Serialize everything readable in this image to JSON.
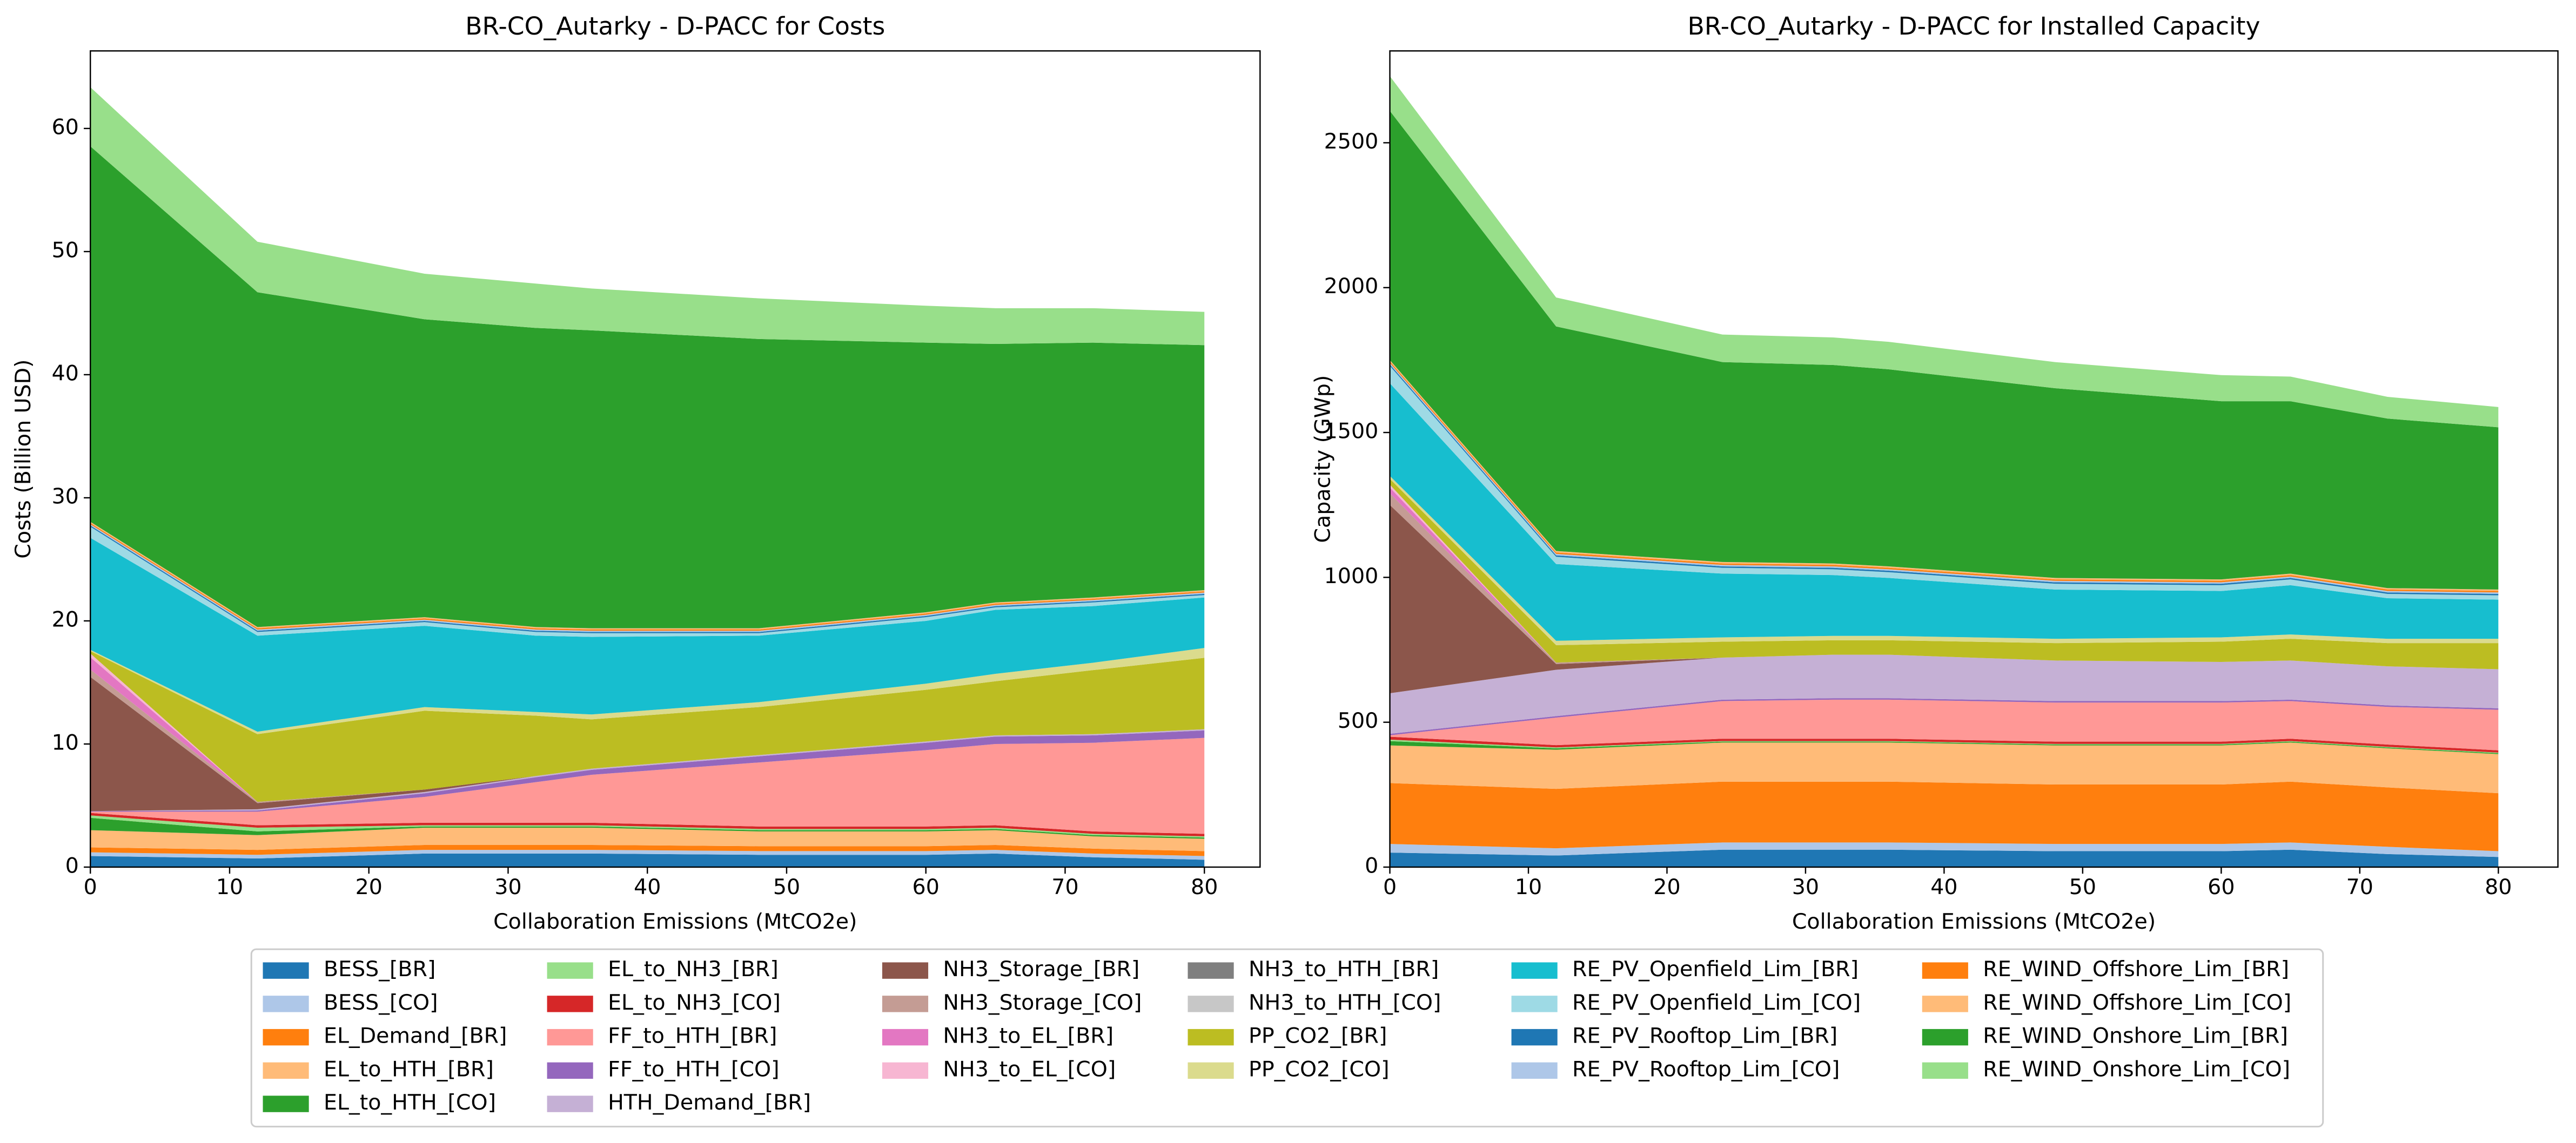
{
  "chart_data": [
    {
      "type": "stackedarea",
      "title": "BR-CO_Autarky - D-PACC for Costs",
      "x_label": "Collaboration Emissions (MtCO2e)",
      "y_label": "Costs (Billion USD)",
      "x": [
        0,
        12,
        24,
        32,
        36,
        48,
        60,
        65,
        72,
        80
      ],
      "xlim": [
        0,
        84
      ],
      "xticks": [
        0,
        10,
        20,
        30,
        40,
        50,
        60,
        70,
        80
      ],
      "ylim": [
        0,
        66.3
      ],
      "yticks": [
        0,
        10,
        20,
        30,
        40,
        50,
        60
      ],
      "series": [
        {
          "name": "BESS_[BR]",
          "color": "#1f77b4",
          "values": [
            0.9,
            0.7,
            1.1,
            1.1,
            1.1,
            1.0,
            1.0,
            1.1,
            0.8,
            0.6
          ]
        },
        {
          "name": "BESS_[CO]",
          "color": "#aec7e8",
          "values": [
            0.3,
            0.3,
            0.3,
            0.3,
            0.3,
            0.3,
            0.3,
            0.3,
            0.3,
            0.3
          ]
        },
        {
          "name": "EL_Demand_[BR]",
          "color": "#ff7f0e",
          "values": [
            0.4,
            0.4,
            0.4,
            0.4,
            0.4,
            0.4,
            0.4,
            0.4,
            0.4,
            0.4
          ]
        },
        {
          "name": "EL_to_HTH_[BR]",
          "color": "#ffbb78",
          "values": [
            1.4,
            1.2,
            1.4,
            1.4,
            1.4,
            1.2,
            1.2,
            1.2,
            1.0,
            1.0
          ]
        },
        {
          "name": "EL_to_HTH_[CO]",
          "color": "#2ca02c",
          "values": [
            1.0,
            0.3,
            0.1,
            0.1,
            0.1,
            0.1,
            0.1,
            0.1,
            0.1,
            0.1
          ]
        },
        {
          "name": "EL_to_NH3_[BR]",
          "color": "#98df8a",
          "values": [
            0.2,
            0.3,
            0.1,
            0.1,
            0.1,
            0.1,
            0.1,
            0.1,
            0.1,
            0.1
          ]
        },
        {
          "name": "EL_to_NH3_[CO]",
          "color": "#d62728",
          "values": [
            0.2,
            0.2,
            0.2,
            0.2,
            0.2,
            0.2,
            0.2,
            0.2,
            0.2,
            0.2
          ]
        },
        {
          "name": "FF_to_HTH_[BR]",
          "color": "#ff9896",
          "values": [
            0.1,
            1.1,
            2.1,
            3.3,
            3.9,
            5.2,
            6.2,
            6.6,
            7.2,
            7.8
          ]
        },
        {
          "name": "FF_to_HTH_[CO]",
          "color": "#9467bd",
          "values": [
            0.05,
            0.1,
            0.3,
            0.4,
            0.4,
            0.5,
            0.6,
            0.6,
            0.6,
            0.6
          ]
        },
        {
          "name": "HTH_Demand_[BR]",
          "color": "#c5b0d5",
          "values": [
            0,
            0.1,
            0.1,
            0.1,
            0.1,
            0.1,
            0.1,
            0.1,
            0.1,
            0.1
          ]
        },
        {
          "name": "NH3_Storage_[BR]",
          "color": "#8c564b",
          "values": [
            10.9,
            0.5,
            0.2,
            0,
            0,
            0,
            0,
            0,
            0,
            0
          ]
        },
        {
          "name": "NH3_Storage_[CO]",
          "color": "#c49c94",
          "values": [
            0.6,
            0.1,
            0,
            0,
            0,
            0,
            0,
            0,
            0,
            0
          ]
        },
        {
          "name": "NH3_to_EL_[BR]",
          "color": "#e377c2",
          "values": [
            1.0,
            0,
            0,
            0,
            0,
            0,
            0,
            0,
            0,
            0
          ]
        },
        {
          "name": "NH3_to_EL_[CO]",
          "color": "#f7b6d2",
          "values": [
            0.3,
            0,
            0,
            0,
            0,
            0,
            0,
            0,
            0,
            0
          ]
        },
        {
          "name": "NH3_to_HTH_[BR]",
          "color": "#7f7f7f",
          "values": [
            0,
            0,
            0,
            0,
            0,
            0,
            0,
            0,
            0,
            0
          ]
        },
        {
          "name": "NH3_to_HTH_[CO]",
          "color": "#c7c7c7",
          "values": [
            0,
            0,
            0,
            0,
            0,
            0,
            0,
            0,
            0,
            0
          ]
        },
        {
          "name": "PP_CO2_[BR]",
          "color": "#bcbd22",
          "values": [
            0.2,
            5.5,
            6.4,
            4.9,
            4.0,
            3.9,
            4.2,
            4.4,
            5.2,
            5.8
          ]
        },
        {
          "name": "PP_CO2_[CO]",
          "color": "#dbdb8d",
          "values": [
            0.1,
            0.2,
            0.3,
            0.3,
            0.4,
            0.4,
            0.5,
            0.6,
            0.6,
            0.8
          ]
        },
        {
          "name": "RE_PV_Openfield_Lim_[BR]",
          "color": "#17becf",
          "values": [
            9.1,
            7.8,
            6.6,
            6.2,
            6.3,
            5.4,
            5.1,
            5.2,
            4.6,
            4.1
          ]
        },
        {
          "name": "RE_PV_Openfield_Lim_[CO]",
          "color": "#9edae5",
          "values": [
            0.9,
            0.3,
            0.3,
            0.3,
            0.3,
            0.2,
            0.3,
            0.2,
            0.3,
            0.2
          ]
        },
        {
          "name": "RE_PV_Rooftop_Lim_[BR]",
          "color": "#1f77b4",
          "values": [
            0.1,
            0.1,
            0.1,
            0.1,
            0.1,
            0.1,
            0.1,
            0.1,
            0.1,
            0.1
          ]
        },
        {
          "name": "RE_PV_Rooftop_Lim_[CO]",
          "color": "#aec7e8",
          "values": [
            0.1,
            0.1,
            0.1,
            0.1,
            0.1,
            0.1,
            0.1,
            0.1,
            0.1,
            0.1
          ]
        },
        {
          "name": "RE_WIND_Offshore_Lim_[BR]",
          "color": "#ff7f0e",
          "values": [
            0.1,
            0.1,
            0.1,
            0.1,
            0.1,
            0.1,
            0.1,
            0.1,
            0.1,
            0.1
          ]
        },
        {
          "name": "RE_WIND_Offshore_Lim_[CO]",
          "color": "#ffbb78",
          "values": [
            0.1,
            0.1,
            0.1,
            0.1,
            0.1,
            0.1,
            0.1,
            0.1,
            0.1,
            0.1
          ]
        },
        {
          "name": "RE_WIND_Onshore_Lim_[BR]",
          "color": "#2ca02c",
          "values": [
            30.5,
            27.2,
            24.2,
            24.3,
            24.2,
            23.5,
            21.9,
            21.0,
            20.7,
            19.9
          ]
        },
        {
          "name": "RE_WIND_Onshore_Lim_[CO]",
          "color": "#98df8a",
          "values": [
            4.8,
            4.1,
            3.7,
            3.6,
            3.4,
            3.3,
            3.0,
            2.9,
            2.8,
            2.7
          ]
        }
      ]
    },
    {
      "type": "stackedarea",
      "title": "BR-CO_Autarky - D-PACC for Installed Capacity",
      "x_label": "Collaboration Emissions (MtCO2e)",
      "y_label": "Capacity (GWp)",
      "x": [
        0,
        12,
        24,
        32,
        36,
        48,
        60,
        65,
        72,
        80
      ],
      "xlim": [
        0,
        84.3
      ],
      "xticks": [
        0,
        10,
        20,
        30,
        40,
        50,
        60,
        70,
        80
      ],
      "ylim": [
        0,
        2817
      ],
      "yticks": [
        0,
        500,
        1000,
        1500,
        2000,
        2500
      ],
      "series": [
        {
          "name": "BESS_[BR]",
          "color": "#1f77b4",
          "values": [
            50,
            40,
            60,
            60,
            60,
            55,
            55,
            60,
            45,
            35
          ]
        },
        {
          "name": "BESS_[CO]",
          "color": "#aec7e8",
          "values": [
            30,
            25,
            25,
            25,
            25,
            25,
            25,
            25,
            25,
            20
          ]
        },
        {
          "name": "EL_Demand_[BR]",
          "color": "#ff7f0e",
          "values": [
            210,
            205,
            210,
            210,
            210,
            205,
            205,
            210,
            205,
            200
          ]
        },
        {
          "name": "EL_to_HTH_[BR]",
          "color": "#ffbb78",
          "values": [
            130,
            135,
            135,
            135,
            135,
            135,
            135,
            135,
            135,
            135
          ]
        },
        {
          "name": "EL_to_HTH_[CO]",
          "color": "#2ca02c",
          "values": [
            15,
            5,
            3,
            3,
            3,
            3,
            3,
            3,
            3,
            3
          ]
        },
        {
          "name": "EL_to_NH3_[BR]",
          "color": "#98df8a",
          "values": [
            5,
            3,
            2,
            2,
            2,
            2,
            2,
            2,
            2,
            2
          ]
        },
        {
          "name": "EL_to_NH3_[CO]",
          "color": "#d62728",
          "values": [
            10,
            8,
            8,
            8,
            8,
            8,
            8,
            8,
            8,
            8
          ]
        },
        {
          "name": "FF_to_HTH_[BR]",
          "color": "#ff9896",
          "values": [
            5,
            95,
            130,
            135,
            135,
            135,
            135,
            130,
            130,
            140
          ]
        },
        {
          "name": "FF_to_HTH_[CO]",
          "color": "#9467bd",
          "values": [
            5,
            5,
            5,
            5,
            5,
            5,
            5,
            5,
            5,
            5
          ]
        },
        {
          "name": "HTH_Demand_[BR]",
          "color": "#c5b0d5",
          "values": [
            140,
            160,
            145,
            150,
            150,
            140,
            135,
            135,
            135,
            135
          ]
        },
        {
          "name": "NH3_Storage_[BR]",
          "color": "#8c564b",
          "values": [
            650,
            20,
            0,
            0,
            0,
            0,
            0,
            0,
            0,
            0
          ]
        },
        {
          "name": "NH3_Storage_[CO]",
          "color": "#c49c94",
          "values": [
            40,
            5,
            0,
            0,
            0,
            0,
            0,
            0,
            0,
            0
          ]
        },
        {
          "name": "NH3_to_EL_[BR]",
          "color": "#e377c2",
          "values": [
            20,
            0,
            0,
            0,
            0,
            0,
            0,
            0,
            0,
            0
          ]
        },
        {
          "name": "NH3_to_EL_[CO]",
          "color": "#f7b6d2",
          "values": [
            10,
            0,
            0,
            0,
            0,
            0,
            0,
            0,
            0,
            0
          ]
        },
        {
          "name": "NH3_to_HTH_[BR]",
          "color": "#7f7f7f",
          "values": [
            0,
            0,
            0,
            0,
            0,
            0,
            0,
            0,
            0,
            0
          ]
        },
        {
          "name": "NH3_to_HTH_[CO]",
          "color": "#c7c7c7",
          "values": [
            0,
            0,
            0,
            0,
            0,
            0,
            0,
            0,
            0,
            0
          ]
        },
        {
          "name": "PP_CO2_[BR]",
          "color": "#bcbd22",
          "values": [
            20,
            60,
            55,
            50,
            50,
            60,
            70,
            75,
            80,
            90
          ]
        },
        {
          "name": "PP_CO2_[CO]",
          "color": "#dbdb8d",
          "values": [
            10,
            15,
            15,
            15,
            15,
            15,
            15,
            15,
            15,
            15
          ]
        },
        {
          "name": "RE_PV_Openfield_Lim_[BR]",
          "color": "#17becf",
          "values": [
            320,
            265,
            220,
            210,
            200,
            170,
            160,
            170,
            140,
            135
          ]
        },
        {
          "name": "RE_PV_Openfield_Lim_[CO]",
          "color": "#9edae5",
          "values": [
            60,
            25,
            20,
            20,
            20,
            20,
            20,
            20,
            15,
            15
          ]
        },
        {
          "name": "RE_PV_Rooftop_Lim_[BR]",
          "color": "#1f77b4",
          "values": [
            5,
            5,
            5,
            5,
            5,
            5,
            5,
            5,
            5,
            5
          ]
        },
        {
          "name": "RE_PV_Rooftop_Lim_[CO]",
          "color": "#aec7e8",
          "values": [
            5,
            5,
            5,
            5,
            5,
            5,
            5,
            5,
            5,
            5
          ]
        },
        {
          "name": "RE_WIND_Offshore_Lim_[BR]",
          "color": "#ff7f0e",
          "values": [
            5,
            5,
            5,
            5,
            5,
            5,
            5,
            5,
            5,
            5
          ]
        },
        {
          "name": "RE_WIND_Offshore_Lim_[CO]",
          "color": "#ffbb78",
          "values": [
            5,
            5,
            5,
            5,
            5,
            5,
            5,
            5,
            5,
            5
          ]
        },
        {
          "name": "RE_WIND_Onshore_Lim_[BR]",
          "color": "#2ca02c",
          "values": [
            860,
            775,
            690,
            685,
            680,
            655,
            615,
            595,
            585,
            560
          ]
        },
        {
          "name": "RE_WIND_Onshore_Lim_[CO]",
          "color": "#98df8a",
          "values": [
            120,
            100,
            95,
            95,
            95,
            90,
            90,
            85,
            75,
            70
          ]
        }
      ]
    }
  ]
}
